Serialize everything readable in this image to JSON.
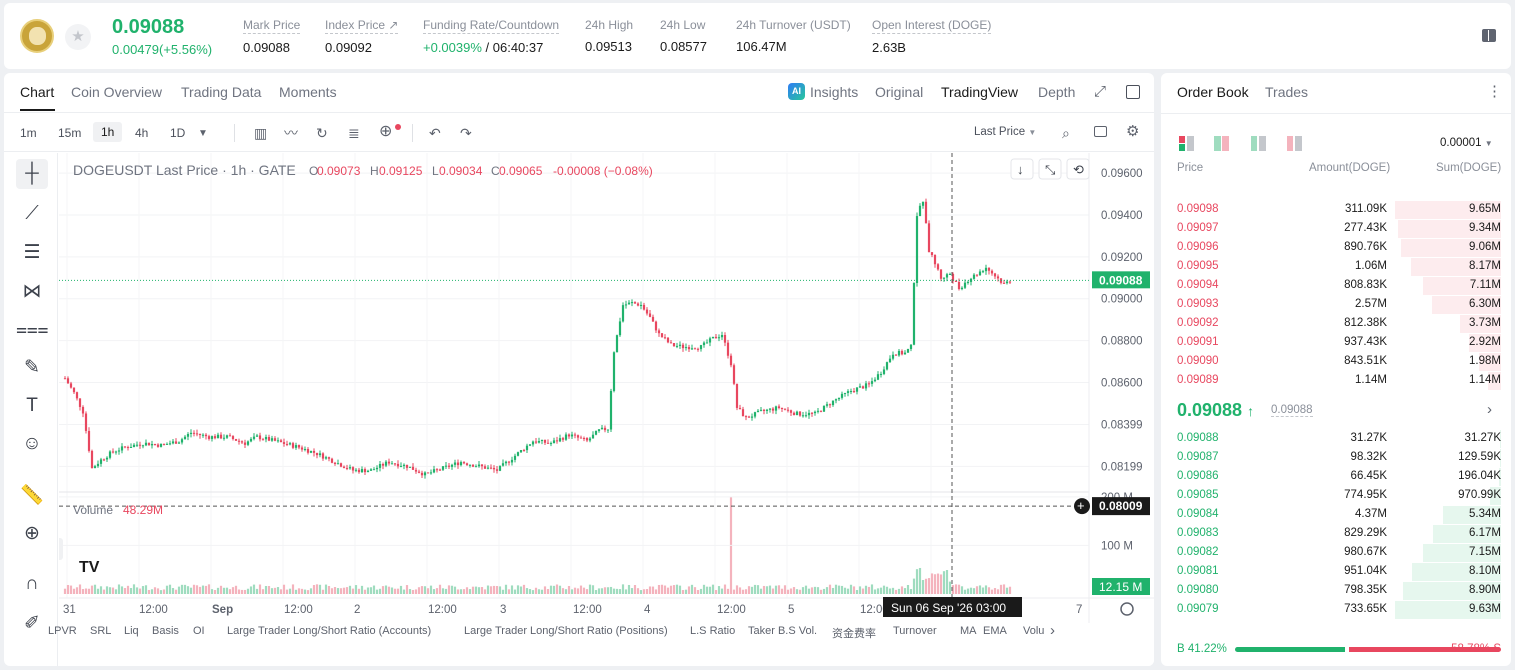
{
  "ticker": {
    "last_price": "0.09088",
    "change": "0.00479(+5.56%)",
    "stats": [
      {
        "label": "Mark Price",
        "value": "0.09088"
      },
      {
        "label": "Index Price",
        "value": "0.09092"
      },
      {
        "label": "Funding Rate/Countdown",
        "value_green": "+0.0039%",
        "value": " / 06:40:37"
      },
      {
        "label": "24h High",
        "value": "0.09513"
      },
      {
        "label": "24h Low",
        "value": "0.08577"
      },
      {
        "label": "24h Turnover (USDT)",
        "value": "106.47M"
      },
      {
        "label": "Open Interest (DOGE)",
        "value": "2.63B"
      }
    ],
    "index_arrow": "↗"
  },
  "chart_tabs": {
    "tabs": [
      "Chart",
      "Coin Overview",
      "Trading Data",
      "Moments"
    ],
    "active": "Chart",
    "right": {
      "ai_badge": "AI",
      "insights": "Insights",
      "original": "Original",
      "tradingview": "TradingView",
      "depth": "Depth"
    }
  },
  "toolbar": {
    "timeframes": [
      "1m",
      "15m",
      "1h",
      "4h",
      "1D"
    ],
    "active_timeframe": "1h",
    "price_type": "Last Price"
  },
  "legend": {
    "symbol": "DOGEUSDT Last Price · 1h · GATE",
    "o_label": "O",
    "o": "0.09073",
    "h_label": "H",
    "h": "0.09125",
    "l_label": "L",
    "l": "0.09034",
    "c_label": "C",
    "c": "0.09065",
    "chg": "-0.00008 (−0.08%)"
  },
  "volume_legend": {
    "label": "Volume",
    "value": "48.29M"
  },
  "chart_data": {
    "type": "candlestick",
    "symbol": "DOGEUSDT",
    "interval": "1h",
    "price_axis": {
      "ticks": [
        "0.09600",
        "0.09400",
        "0.09200",
        "0.09000",
        "0.08800",
        "0.08600",
        "0.08399",
        "0.08199"
      ],
      "range": [
        0.08,
        0.0962
      ]
    },
    "volume_axis": {
      "ticks": [
        "200 M",
        "100 M"
      ],
      "range": [
        0,
        210
      ]
    },
    "time_ticks": [
      "31",
      "12:00",
      "Sep",
      "12:00",
      "2",
      "12:00",
      "3",
      "12:00",
      "4",
      "12:00",
      "5",
      "12:00",
      "7"
    ],
    "last_price_tag": "0.09088",
    "crosshair_price_tag": "0.08009",
    "volume_tag": "12.15 M",
    "crosshair_time_tag": "Sun 06 Sep '26   03:00",
    "close_path": [
      [
        0,
        0.0862
      ],
      [
        3,
        0.0855
      ],
      [
        6,
        0.0846
      ],
      [
        9,
        0.0819
      ],
      [
        12,
        0.0823
      ],
      [
        16,
        0.0827
      ],
      [
        20,
        0.0829
      ],
      [
        26,
        0.0831
      ],
      [
        32,
        0.083
      ],
      [
        38,
        0.0832
      ],
      [
        42,
        0.0836
      ],
      [
        48,
        0.0834
      ],
      [
        54,
        0.0834
      ],
      [
        60,
        0.0831
      ],
      [
        64,
        0.0834
      ],
      [
        70,
        0.0832
      ],
      [
        78,
        0.0829
      ],
      [
        84,
        0.0826
      ],
      [
        90,
        0.0822
      ],
      [
        96,
        0.0818
      ],
      [
        102,
        0.0818
      ],
      [
        108,
        0.0822
      ],
      [
        114,
        0.082
      ],
      [
        120,
        0.0816
      ],
      [
        126,
        0.0819
      ],
      [
        132,
        0.0822
      ],
      [
        138,
        0.082
      ],
      [
        144,
        0.0818
      ],
      [
        150,
        0.0825
      ],
      [
        156,
        0.0832
      ],
      [
        162,
        0.0831
      ],
      [
        168,
        0.0835
      ],
      [
        174,
        0.0832
      ],
      [
        178,
        0.0837
      ],
      [
        181,
        0.0838
      ],
      [
        183,
        0.0875
      ],
      [
        186,
        0.0897
      ],
      [
        189,
        0.0898
      ],
      [
        192,
        0.0897
      ],
      [
        195,
        0.0891
      ],
      [
        198,
        0.0883
      ],
      [
        202,
        0.0878
      ],
      [
        206,
        0.0877
      ],
      [
        212,
        0.0877
      ],
      [
        216,
        0.0881
      ],
      [
        219,
        0.0883
      ],
      [
        222,
        0.0869
      ],
      [
        224,
        0.0848
      ],
      [
        227,
        0.0843
      ],
      [
        232,
        0.0846
      ],
      [
        238,
        0.0848
      ],
      [
        244,
        0.0845
      ],
      [
        250,
        0.0845
      ],
      [
        256,
        0.0851
      ],
      [
        262,
        0.0856
      ],
      [
        268,
        0.0859
      ],
      [
        272,
        0.0865
      ],
      [
        276,
        0.0874
      ],
      [
        280,
        0.0874
      ],
      [
        282,
        0.0877
      ],
      [
        284,
        0.094
      ],
      [
        286,
        0.0947
      ],
      [
        288,
        0.0923
      ],
      [
        290,
        0.0917
      ],
      [
        292,
        0.091
      ],
      [
        295,
        0.0912
      ],
      [
        298,
        0.0905
      ],
      [
        301,
        0.0909
      ],
      [
        304,
        0.0912
      ],
      [
        307,
        0.0915
      ],
      [
        310,
        0.0911
      ],
      [
        313,
        0.0907
      ],
      [
        315,
        0.09088
      ]
    ],
    "volume_highlights": [
      [
        222,
        210
      ],
      [
        284,
        65
      ],
      [
        286,
        55
      ]
    ]
  },
  "bottom_indicators": [
    "LPVR",
    "SRL",
    "Liq",
    "Basis",
    "OI",
    "Large Trader Long/Short Ratio (Accounts)",
    "Large Trader Long/Short Ratio (Positions)",
    "L.S Ratio",
    "Taker B.S Vol.",
    "资金费率",
    "Turnover",
    "MA",
    "EMA",
    "Volu"
  ],
  "order_book": {
    "tabs": [
      "Order Book",
      "Trades"
    ],
    "precision": "0.00001",
    "headers": [
      "Price",
      "Amount(DOGE)",
      "Sum(DOGE)"
    ],
    "asks": [
      {
        "price": "0.09098",
        "amount": "311.09K",
        "sum": "9.65M",
        "depth": 1.0
      },
      {
        "price": "0.09097",
        "amount": "277.43K",
        "sum": "9.34M",
        "depth": 0.97
      },
      {
        "price": "0.09096",
        "amount": "890.76K",
        "sum": "9.06M",
        "depth": 0.94
      },
      {
        "price": "0.09095",
        "amount": "1.06M",
        "sum": "8.17M",
        "depth": 0.85
      },
      {
        "price": "0.09094",
        "amount": "808.83K",
        "sum": "7.11M",
        "depth": 0.74
      },
      {
        "price": "0.09093",
        "amount": "2.57M",
        "sum": "6.30M",
        "depth": 0.65
      },
      {
        "price": "0.09092",
        "amount": "812.38K",
        "sum": "3.73M",
        "depth": 0.39
      },
      {
        "price": "0.09091",
        "amount": "937.43K",
        "sum": "2.92M",
        "depth": 0.3
      },
      {
        "price": "0.09090",
        "amount": "843.51K",
        "sum": "1.98M",
        "depth": 0.21
      },
      {
        "price": "0.09089",
        "amount": "1.14M",
        "sum": "1.14M",
        "depth": 0.12
      }
    ],
    "mid_price": "0.09088",
    "mid_arrow": "↑",
    "mark_price": "0.09088",
    "bids": [
      {
        "price": "0.09088",
        "amount": "31.27K",
        "sum": "31.27K",
        "depth": 0.003
      },
      {
        "price": "0.09087",
        "amount": "98.32K",
        "sum": "129.59K",
        "depth": 0.013
      },
      {
        "price": "0.09086",
        "amount": "66.45K",
        "sum": "196.04K",
        "depth": 0.02
      },
      {
        "price": "0.09085",
        "amount": "774.95K",
        "sum": "970.99K",
        "depth": 0.1
      },
      {
        "price": "0.09084",
        "amount": "4.37M",
        "sum": "5.34M",
        "depth": 0.55
      },
      {
        "price": "0.09083",
        "amount": "829.29K",
        "sum": "6.17M",
        "depth": 0.64
      },
      {
        "price": "0.09082",
        "amount": "980.67K",
        "sum": "7.15M",
        "depth": 0.74
      },
      {
        "price": "0.09081",
        "amount": "951.04K",
        "sum": "8.10M",
        "depth": 0.84
      },
      {
        "price": "0.09080",
        "amount": "798.35K",
        "sum": "8.90M",
        "depth": 0.92
      },
      {
        "price": "0.09079",
        "amount": "733.65K",
        "sum": "9.63M",
        "depth": 1.0
      }
    ],
    "buy_ratio": "B 41.22%",
    "sell_ratio": "58.78% S",
    "buy_fraction": 0.4122
  },
  "colors": {
    "up": "#20b26c",
    "down": "#e8475f",
    "up_bar": "#e6f7ee",
    "down_bar": "#fdecee"
  }
}
